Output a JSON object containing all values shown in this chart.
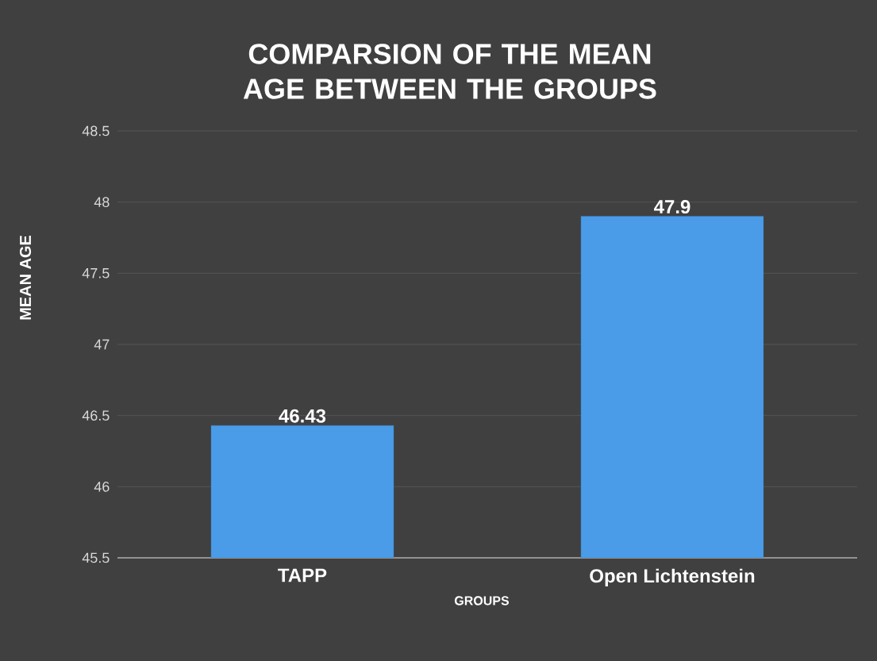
{
  "chart_data": {
    "type": "bar",
    "title": "COMPARSION OF THE MEAN AGE BETWEEN THE GROUPS",
    "xlabel": "GROUPS",
    "ylabel": "MEAN AGE",
    "categories": [
      "TAPP",
      "Open Lichtenstein"
    ],
    "values": [
      46.43,
      47.9
    ],
    "color": "#4a9ce8",
    "ylim": [
      45.5,
      48.5
    ],
    "yticks": [
      45.5,
      46,
      46.5,
      47,
      47.5,
      48,
      48.5
    ],
    "grid": "y",
    "data_labels": true
  }
}
